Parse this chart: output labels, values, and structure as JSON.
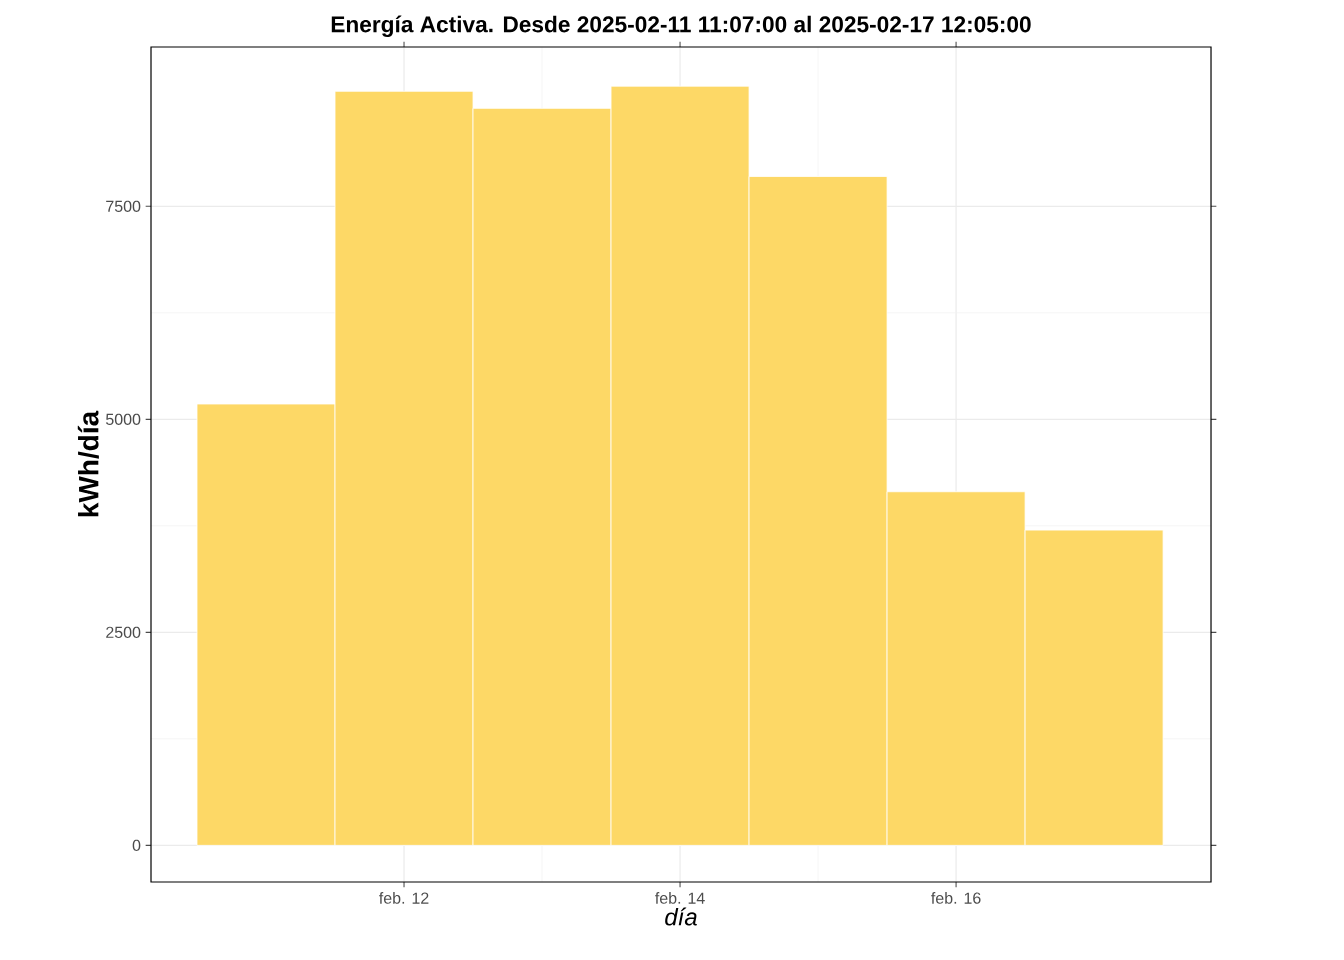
{
  "chart_data": {
    "type": "bar",
    "title": "Energía Activa. Desde  2025-02-11 11:07:00  al  2025-02-17 12:05:00",
    "xlabel": "día",
    "ylabel": "kWh/día",
    "x": [
      "2025-02-11",
      "2025-02-12",
      "2025-02-13",
      "2025-02-14",
      "2025-02-15",
      "2025-02-16",
      "2025-02-17"
    ],
    "values": [
      5180,
      8850,
      8650,
      8910,
      7850,
      4150,
      3700
    ],
    "color": "#fdd866",
    "xlim": [
      "2025-02-10T04:00",
      "2025-02-17T20:20"
    ],
    "xticks": [
      {
        "value": "2025-02-12",
        "label": "feb. 12"
      },
      {
        "value": "2025-02-14",
        "label": "feb. 14"
      },
      {
        "value": "2025-02-16",
        "label": "feb. 16"
      }
    ],
    "ylim": [
      -430,
      9370
    ],
    "yticks": [
      0,
      2500,
      5000,
      7500
    ],
    "grid": true
  }
}
